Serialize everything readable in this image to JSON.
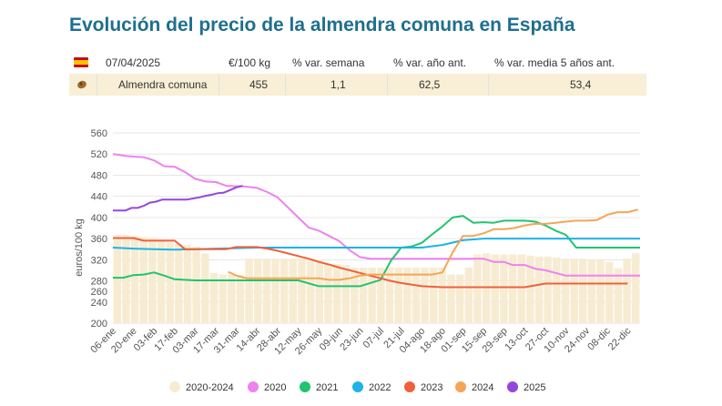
{
  "title": "Evolución del precio de la almendra comuna en España",
  "table": {
    "header": {
      "date": "07/04/2025",
      "unit": "€/100 kg",
      "col_week": "% var. semana",
      "col_year": "% var. año ant.",
      "col_5y": "% var. media 5 años ant."
    },
    "row": {
      "product": "Almendra comuna",
      "price": "455",
      "week": "1,1",
      "year": "62,5",
      "five": "53,4"
    },
    "flag_icon": "spain-flag-icon",
    "product_icon": "almond-icon"
  },
  "chart_data": {
    "type": "line",
    "ylabel": "euros/100 kg",
    "ylim": [
      200,
      560
    ],
    "yticks": [
      200,
      240,
      260,
      280,
      320,
      360,
      400,
      440,
      480,
      520,
      560
    ],
    "xlabels": [
      "06-ene",
      "20-ene",
      "03-feb",
      "17-feb",
      "03-mar",
      "17-mar",
      "31-mar",
      "14-abr",
      "28-abr",
      "12-may",
      "26-may",
      "09-jun",
      "23-jun",
      "07-jul",
      "21-jul",
      "04-ago",
      "18-ago",
      "01-sep",
      "15-sep",
      "29-sep",
      "13-oct",
      "27-oct",
      "10-nov",
      "24-nov",
      "08-dic",
      "22-dic"
    ],
    "grid": true,
    "legend_position": "bottom",
    "bar_series": {
      "name": "2020-2024",
      "color": "#f7ecd2",
      "values": [
        367,
        367,
        365,
        363,
        362,
        358,
        353,
        350,
        348,
        345,
        332,
        295,
        292,
        292,
        292,
        322,
        322,
        322,
        322,
        322,
        322,
        322,
        322,
        320,
        312,
        312,
        310,
        305,
        305,
        305,
        305,
        305,
        305,
        305,
        305,
        305,
        305,
        305,
        292,
        292,
        305,
        330,
        332,
        330,
        330,
        330,
        330,
        328,
        326,
        326,
        324,
        322,
        322,
        322,
        320,
        320,
        316,
        304,
        322,
        332
      ]
    },
    "series": [
      {
        "name": "2020",
        "color": "#ee82ee",
        "x": [
          0,
          0.7,
          1.5,
          2.0,
          2.5,
          3.0,
          3.5,
          4.0,
          4.5,
          5.0,
          5.5,
          6.0,
          6.3,
          7.0,
          7.5,
          8.0,
          9.0,
          9.5,
          10.0,
          10.5,
          11.0,
          11.5,
          12.0,
          12.5,
          13.0,
          14.0,
          15.0,
          16.0,
          17.0,
          17.4,
          18.0,
          18.5,
          19.0,
          19.4,
          20.0,
          20.5,
          21.0,
          22.0,
          23.0,
          24.0,
          25.0,
          25.6
        ],
        "y": [
          520,
          516,
          514,
          508,
          497,
          496,
          486,
          473,
          468,
          467,
          460,
          459,
          459,
          456,
          448,
          438,
          400,
          381,
          375,
          365,
          355,
          338,
          325,
          322,
          322,
          322,
          322,
          322,
          322,
          322,
          322,
          316,
          316,
          310,
          310,
          303,
          300,
          290,
          290,
          290,
          290,
          290
        ]
      },
      {
        "name": "2021",
        "color": "#22c36e",
        "x": [
          0,
          0.5,
          1.0,
          1.5,
          2.0,
          2.5,
          3.0,
          4.0,
          5.0,
          6.0,
          7.0,
          8.0,
          9.0,
          10.0,
          11.0,
          12.0,
          13.0,
          13.5,
          14.0,
          14.5,
          15.0,
          15.5,
          16.0,
          16.5,
          17.0,
          17.5,
          18.0,
          18.5,
          19.0,
          19.5,
          20.0,
          20.5,
          21.0,
          21.5,
          22.0,
          22.5,
          23.0,
          24.0,
          25.0,
          25.6
        ],
        "y": [
          286,
          286,
          291,
          292,
          296,
          290,
          283,
          281,
          281,
          281,
          281,
          281,
          281,
          270,
          270,
          270,
          282,
          318,
          343,
          345,
          352,
          368,
          383,
          400,
          403,
          390,
          391,
          390,
          394,
          394,
          394,
          392,
          385,
          375,
          367,
          343,
          343,
          343,
          343,
          343
        ]
      },
      {
        "name": "2022",
        "color": "#1eb3e6",
        "x": [
          0,
          1,
          2,
          3,
          4,
          5,
          6,
          7,
          8,
          9,
          10,
          11,
          12,
          13,
          14,
          15,
          16,
          17,
          18,
          19,
          20,
          21,
          22,
          23,
          24,
          25,
          25.6
        ],
        "y": [
          343,
          341,
          340,
          339,
          340,
          341,
          342,
          343,
          343,
          343,
          343,
          343,
          343,
          343,
          343,
          343,
          348,
          357,
          360,
          360,
          360,
          360,
          360,
          360,
          360,
          360,
          360
        ]
      },
      {
        "name": "2023",
        "color": "#f0603c",
        "x": [
          0,
          0.5,
          1.0,
          1.5,
          2.0,
          2.5,
          3.0,
          3.5,
          4.0,
          4.5,
          5.0,
          5.5,
          6.0,
          6.5,
          7.0,
          7.5,
          8.0,
          8.5,
          9.0,
          9.5,
          10.0,
          10.5,
          11.0,
          11.5,
          12.0,
          12.5,
          13.0,
          13.5,
          14.0,
          15.0,
          16.0,
          17.0,
          18.0,
          19.0,
          20.0,
          21.0,
          22.0,
          23.0,
          24.0,
          25.0
        ],
        "y": [
          361,
          361,
          361,
          356,
          356,
          356,
          356,
          340,
          340,
          340,
          340,
          340,
          344,
          344,
          344,
          341,
          337,
          332,
          327,
          322,
          316,
          311,
          305,
          300,
          295,
          290,
          285,
          280,
          276,
          270,
          268,
          268,
          268,
          268,
          268,
          275,
          275,
          275,
          275,
          275
        ]
      },
      {
        "name": "2024",
        "color": "#f5a556",
        "x": [
          5.6,
          6.0,
          6.5,
          7.0,
          7.5,
          8.0,
          8.5,
          9.0,
          9.5,
          10.0,
          10.5,
          11.0,
          11.5,
          12.0,
          12.5,
          13.0,
          13.5,
          14.0,
          14.5,
          15.0,
          15.5,
          16.0,
          16.5,
          17.0,
          17.5,
          18.0,
          18.5,
          19.0,
          19.5,
          20.0,
          20.5,
          21.0,
          21.5,
          22.0,
          22.5,
          23.0,
          23.5,
          24.0,
          24.5,
          25.0,
          25.5
        ],
        "y": [
          297,
          290,
          285,
          285,
          285,
          285,
          285,
          285,
          285,
          285,
          282,
          282,
          285,
          290,
          292,
          292,
          292,
          292,
          292,
          292,
          292,
          296,
          334,
          365,
          365,
          370,
          378,
          378,
          380,
          385,
          388,
          388,
          390,
          392,
          394,
          394,
          395,
          405,
          410,
          410,
          415
        ]
      },
      {
        "name": "2025",
        "color": "#9646de",
        "x": [
          0,
          0.3,
          0.6,
          0.9,
          1.2,
          1.5,
          1.8,
          2.1,
          2.4,
          2.7,
          3.0,
          3.3,
          3.6,
          3.9,
          4.2,
          4.5,
          4.8,
          5.1,
          5.4,
          5.7,
          6.0,
          6.3
        ],
        "y": [
          413,
          413,
          413,
          418,
          418,
          422,
          428,
          430,
          434,
          434,
          434,
          434,
          434,
          436,
          438,
          441,
          443,
          446,
          447,
          452,
          457,
          460
        ]
      }
    ]
  }
}
